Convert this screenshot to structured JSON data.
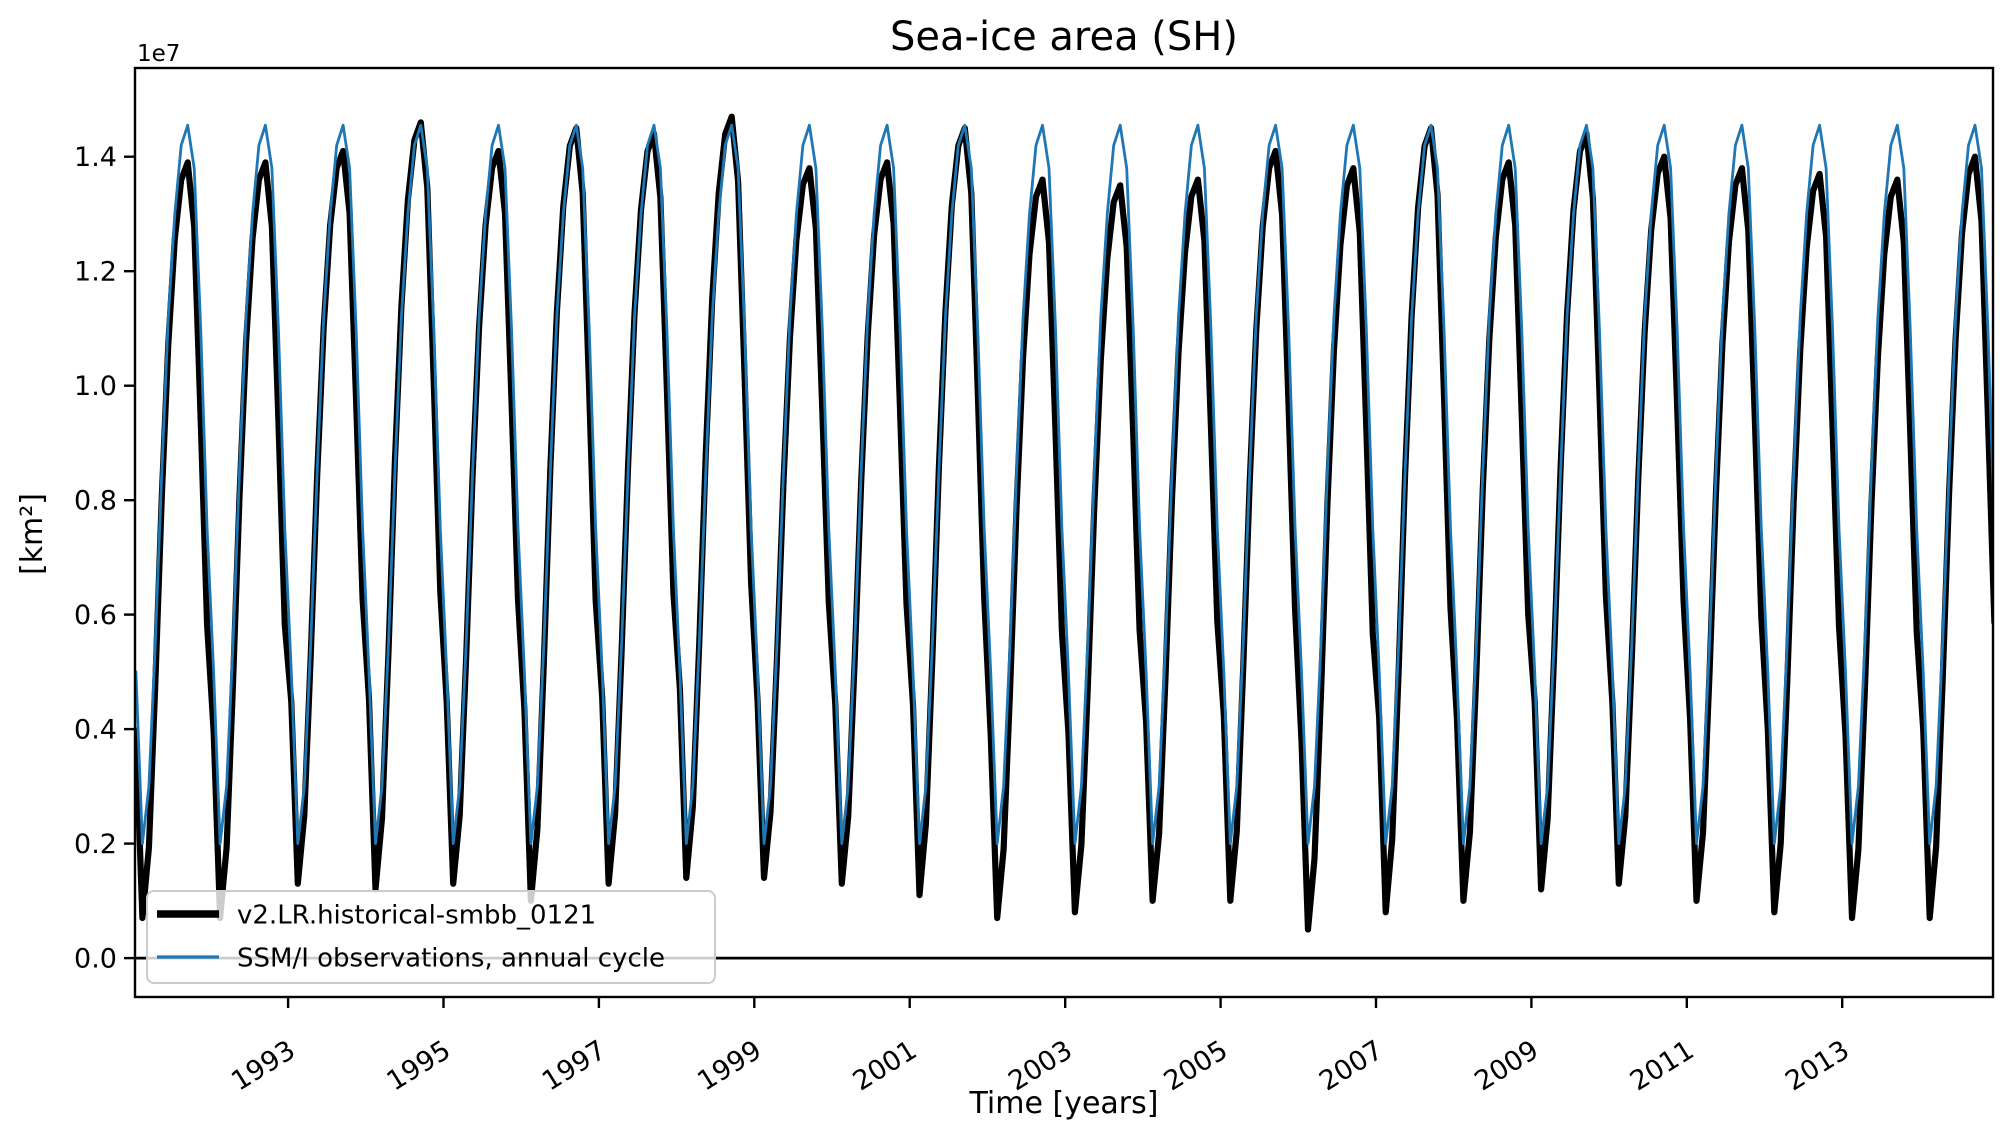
{
  "figure": {
    "background": "#ffffff"
  },
  "chart_data": {
    "type": "line",
    "title": "Sea-ice area (SH)",
    "xlabel": "Time [years]",
    "ylabel": "[km²]",
    "y_offset_text": "1e7",
    "x_ticks": [
      1993,
      1995,
      1997,
      1999,
      2001,
      2003,
      2005,
      2007,
      2009,
      2011,
      2013
    ],
    "y_ticks_1e7": [
      0.0,
      0.2,
      0.4,
      0.6,
      0.8,
      1.0,
      1.2,
      1.4
    ],
    "xlim": [
      1991.03,
      2014.94
    ],
    "ylim_1e7": [
      -0.068,
      1.555
    ],
    "grid": false,
    "zero_line_y": 0.0,
    "legend_position": "lower-left",
    "time_resolution": "monthly, x in decimal years",
    "series": [
      {
        "name": "v2.LR.historical-smbb_0121",
        "color": "#000000",
        "line_width": 6.2,
        "kind": "model-monthly",
        "start_year": 1991,
        "annual_max_1e7": [
          1.39,
          1.39,
          1.41,
          1.46,
          1.41,
          1.45,
          1.44,
          1.47,
          1.38,
          1.39,
          1.45,
          1.36,
          1.35,
          1.36,
          1.41,
          1.38,
          1.45,
          1.39,
          1.44,
          1.4,
          1.38,
          1.37,
          1.36,
          1.4
        ],
        "annual_min_1e7": [
          0.07,
          0.07,
          0.13,
          0.12,
          0.13,
          0.1,
          0.13,
          0.14,
          0.14,
          0.13,
          0.11,
          0.07,
          0.08,
          0.1,
          0.1,
          0.05,
          0.08,
          0.1,
          0.12,
          0.13,
          0.1,
          0.08,
          0.07,
          0.07
        ],
        "monthly_shape_0to1": [
          0.248,
          0.0,
          0.093,
          0.31,
          0.558,
          0.76,
          0.899,
          0.977,
          1.0,
          0.915,
          0.659,
          0.388
        ]
      },
      {
        "name": "SSM/I observations, annual cycle",
        "color": "#1f77b4",
        "line_width": 2.8,
        "kind": "repeating-climatology",
        "start_year": 1991,
        "end_year": 2014,
        "monthly_climatology_1e7": [
          0.5,
          0.2,
          0.3,
          0.55,
          0.85,
          1.12,
          1.3,
          1.42,
          1.455,
          1.38,
          1.1,
          0.75
        ]
      }
    ]
  },
  "legend": {
    "entries": [
      {
        "label": "v2.LR.historical-smbb_0121",
        "color": "#000000",
        "line_width": 7.5
      },
      {
        "label": "SSM/I observations, annual cycle",
        "color": "#1f77b4",
        "line_width": 3.2
      }
    ]
  }
}
